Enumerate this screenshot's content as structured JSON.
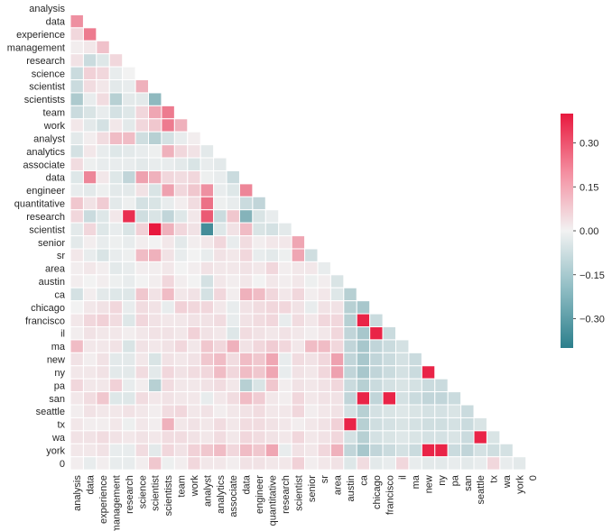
{
  "chart_data": {
    "type": "heatmap",
    "title": "",
    "mask": "upper-triangle",
    "row_labels": [
      "analysis",
      "data",
      "experience",
      "management",
      "research",
      "science",
      "scientist",
      "scientists",
      "team",
      "work",
      "analyst",
      "analytics",
      "associate",
      "data",
      "engineer",
      "quantitative",
      "research",
      "scientist",
      "senior",
      "sr",
      "area",
      "austin",
      "ca",
      "chicago",
      "francisco",
      "il",
      "ma",
      "new",
      "ny",
      "pa",
      "san",
      "seattle",
      "tx",
      "wa",
      "york",
      "0"
    ],
    "col_labels": [
      "analysis",
      "data",
      "experience",
      "management",
      "research",
      "science",
      "scientist",
      "scientists",
      "team",
      "work",
      "analyst",
      "analytics",
      "associate",
      "data",
      "engineer",
      "quantitative",
      "research",
      "scientist",
      "senior",
      "sr",
      "area",
      "austin",
      "ca",
      "chicago",
      "francisco",
      "il",
      "ma",
      "new",
      "ny",
      "pa",
      "san",
      "seattle",
      "tx",
      "wa",
      "york",
      "0"
    ],
    "vmin": -0.4,
    "vmax": 0.4,
    "colormap": [
      "#2c7f8c",
      "#f2f2f2",
      "#e8193e"
    ],
    "colorbar_ticks": [
      0.3,
      0.15,
      0.0,
      -0.15,
      -0.3
    ],
    "colorbar_tick_labels": [
      "0.30",
      "0.15",
      "0.00",
      "−0.15",
      "−0.30"
    ],
    "matrix": [
      [],
      [
        0.18
      ],
      [
        0.05,
        0.22
      ],
      [
        0.01,
        0.02,
        0.09
      ],
      [
        0.03,
        -0.08,
        -0.04,
        0.05
      ],
      [
        -0.08,
        0.06,
        0.05,
        -0.02,
        0.0
      ],
      [
        -0.08,
        0.04,
        0.02,
        -0.03,
        -0.02,
        0.12
      ],
      [
        -0.14,
        -0.02,
        0.04,
        -0.12,
        -0.03,
        -0.03,
        -0.2
      ],
      [
        -0.08,
        -0.05,
        -0.02,
        -0.06,
        -0.04,
        0.05,
        0.14,
        0.22
      ],
      [
        0.02,
        -0.03,
        -0.06,
        0.02,
        -0.03,
        0.05,
        0.08,
        0.22,
        0.12
      ],
      [
        -0.03,
        0.01,
        0.04,
        0.1,
        0.1,
        -0.07,
        -0.12,
        -0.06,
        -0.02,
        0.01
      ],
      [
        -0.06,
        0.02,
        -0.02,
        -0.04,
        -0.03,
        -0.02,
        -0.01,
        0.12,
        0.05,
        0.03,
        -0.03
      ],
      [
        0.04,
        -0.01,
        -0.02,
        -0.02,
        -0.02,
        -0.03,
        -0.02,
        -0.02,
        -0.03,
        -0.05,
        -0.02,
        -0.03
      ],
      [
        -0.04,
        0.2,
        0.02,
        -0.04,
        -0.1,
        0.15,
        0.12,
        0.05,
        0.04,
        0.05,
        -0.01,
        -0.02,
        -0.08
      ],
      [
        -0.02,
        -0.03,
        -0.01,
        -0.03,
        -0.03,
        0.03,
        -0.05,
        0.15,
        0.05,
        0.08,
        0.18,
        -0.02,
        -0.04,
        0.2
      ],
      [
        0.08,
        0.03,
        0.07,
        -0.03,
        -0.01,
        -0.06,
        -0.05,
        -0.02,
        0.01,
        0.04,
        0.24,
        -0.01,
        -0.02,
        -0.08,
        -0.1
      ],
      [
        0.05,
        -0.08,
        -0.04,
        0.02,
        0.36,
        -0.07,
        -0.05,
        -0.1,
        -0.04,
        0.02,
        0.28,
        -0.08,
        0.08,
        -0.22,
        -0.05,
        -0.02
      ],
      [
        -0.03,
        0.05,
        -0.04,
        -0.02,
        -0.05,
        0.06,
        0.4,
        0.12,
        0.05,
        0.03,
        -0.35,
        -0.04,
        0.03,
        0.1,
        -0.05,
        -0.06,
        -0.03
      ],
      [
        -0.03,
        0.01,
        -0.02,
        -0.01,
        -0.02,
        0.01,
        0.0,
        0.02,
        -0.03,
        0.01,
        0.02,
        0.05,
        -0.02,
        0.04,
        0.01,
        0.02,
        0.02,
        0.14
      ],
      [
        0.02,
        -0.02,
        -0.05,
        -0.02,
        -0.01,
        0.1,
        0.12,
        0.03,
        -0.02,
        0.0,
        -0.02,
        0.03,
        0.02,
        0.05,
        -0.02,
        -0.03,
        -0.01,
        0.14,
        -0.07
      ],
      [
        0.01,
        0.02,
        0.01,
        -0.03,
        -0.02,
        0.01,
        0.01,
        0.02,
        0.0,
        0.01,
        0.03,
        0.02,
        0.02,
        0.03,
        0.02,
        0.05,
        0.01,
        0.02,
        0.02,
        -0.02
      ],
      [
        0.01,
        0.0,
        0.01,
        -0.01,
        -0.02,
        0.0,
        0.01,
        0.05,
        0.01,
        0.0,
        -0.06,
        0.02,
        0.01,
        0.02,
        0.0,
        0.02,
        0.01,
        0.02,
        -0.01,
        0.01,
        -0.05
      ],
      [
        -0.06,
        0.01,
        -0.03,
        -0.04,
        -0.04,
        0.08,
        0.03,
        0.1,
        0.02,
        0.03,
        -0.06,
        0.05,
        0.01,
        0.12,
        0.1,
        0.05,
        0.02,
        0.05,
        0.01,
        0.02,
        -0.04,
        -0.12
      ],
      [
        0.0,
        0.02,
        0.03,
        0.05,
        -0.02,
        0.04,
        0.03,
        -0.02,
        0.06,
        0.05,
        0.05,
        0.02,
        -0.02,
        0.03,
        0.04,
        0.05,
        0.05,
        0.03,
        -0.02,
        0.03,
        0.03,
        -0.12,
        -0.15
      ],
      [
        0.02,
        0.05,
        0.06,
        0.04,
        -0.04,
        0.05,
        0.03,
        0.02,
        0.02,
        0.03,
        0.03,
        0.04,
        -0.02,
        0.03,
        0.04,
        0.05,
        -0.02,
        0.04,
        0.02,
        0.05,
        0.05,
        -0.12,
        0.38,
        -0.08
      ],
      [
        0.01,
        0.03,
        0.02,
        0.02,
        0.01,
        0.02,
        0.03,
        0.03,
        0.02,
        0.06,
        0.03,
        0.02,
        -0.04,
        0.04,
        0.03,
        0.02,
        0.03,
        0.02,
        0.01,
        0.02,
        0.05,
        -0.1,
        -0.15,
        0.38,
        -0.08
      ],
      [
        0.1,
        0.02,
        0.02,
        0.03,
        -0.05,
        0.03,
        0.02,
        0.03,
        0.05,
        0.02,
        0.08,
        0.05,
        0.12,
        0.03,
        0.05,
        0.07,
        0.05,
        0.02,
        0.1,
        0.1,
        0.05,
        -0.1,
        -0.15,
        -0.1,
        -0.08,
        -0.06
      ],
      [
        0.03,
        0.01,
        0.03,
        -0.03,
        -0.03,
        0.02,
        -0.05,
        0.03,
        0.02,
        0.03,
        0.08,
        0.1,
        0.04,
        0.1,
        0.08,
        0.14,
        -0.02,
        0.04,
        0.03,
        0.05,
        0.15,
        -0.1,
        -0.15,
        -0.1,
        -0.08,
        -0.06,
        -0.08
      ],
      [
        0.02,
        0.02,
        0.03,
        -0.03,
        -0.03,
        0.04,
        -0.03,
        0.05,
        0.03,
        0.04,
        0.05,
        0.1,
        0.05,
        0.1,
        0.08,
        0.14,
        -0.02,
        0.03,
        0.02,
        0.05,
        0.15,
        -0.1,
        -0.15,
        -0.1,
        -0.08,
        -0.06,
        -0.08,
        0.38
      ],
      [
        0.05,
        0.02,
        0.02,
        0.06,
        -0.02,
        0.01,
        -0.12,
        0.04,
        0.02,
        0.02,
        0.03,
        0.04,
        0.02,
        -0.12,
        -0.05,
        0.08,
        0.01,
        0.03,
        0.02,
        0.03,
        0.05,
        -0.08,
        -0.12,
        -0.08,
        -0.06,
        -0.05,
        -0.06,
        -0.08,
        -0.08
      ],
      [
        0.02,
        0.04,
        0.08,
        -0.04,
        -0.04,
        0.04,
        0.02,
        0.03,
        0.02,
        0.02,
        -0.02,
        0.02,
        0.04,
        0.1,
        0.07,
        0.02,
        0.01,
        0.05,
        0.02,
        0.03,
        0.03,
        -0.1,
        0.38,
        -0.1,
        0.38,
        -0.06,
        -0.08,
        -0.1,
        -0.1,
        -0.08
      ],
      [
        0.01,
        0.03,
        0.02,
        0.02,
        0.03,
        0.02,
        0.01,
        0.04,
        0.05,
        0.02,
        0.03,
        0.01,
        0.02,
        0.03,
        0.04,
        0.02,
        0.02,
        0.05,
        0.01,
        0.02,
        0.03,
        -0.06,
        -0.12,
        -0.06,
        -0.05,
        -0.04,
        -0.05,
        -0.06,
        -0.06,
        -0.05,
        -0.08
      ],
      [
        0.02,
        0.01,
        0.01,
        0.02,
        -0.01,
        0.02,
        0.01,
        0.12,
        0.02,
        0.03,
        0.02,
        0.04,
        0.02,
        0.04,
        0.04,
        0.03,
        0.02,
        0.01,
        0.02,
        0.03,
        0.06,
        0.38,
        -0.12,
        -0.07,
        -0.06,
        -0.05,
        -0.06,
        -0.07,
        -0.07,
        -0.06,
        -0.08,
        -0.05
      ],
      [
        0.03,
        0.03,
        0.04,
        0.03,
        0.02,
        0.03,
        0.02,
        0.04,
        0.04,
        0.03,
        0.02,
        0.04,
        0.02,
        0.05,
        0.04,
        0.03,
        0.02,
        0.05,
        0.02,
        0.03,
        0.05,
        -0.06,
        -0.12,
        -0.06,
        -0.05,
        -0.04,
        -0.05,
        -0.06,
        -0.06,
        -0.05,
        -0.08,
        0.38,
        -0.05
      ],
      [
        0.02,
        0.02,
        0.03,
        -0.02,
        -0.02,
        0.04,
        -0.03,
        0.05,
        0.03,
        0.06,
        0.08,
        0.1,
        0.05,
        0.1,
        0.08,
        0.14,
        -0.02,
        0.03,
        0.02,
        0.05,
        0.12,
        -0.1,
        -0.15,
        -0.1,
        -0.08,
        -0.06,
        -0.08,
        0.38,
        0.38,
        -0.08,
        -0.1,
        -0.06,
        -0.07,
        -0.06
      ],
      [
        0.01,
        -0.02,
        0.01,
        -0.02,
        -0.02,
        0.01,
        0.08,
        -0.01,
        0.01,
        0.05,
        0.02,
        0.02,
        0.01,
        0.03,
        0.03,
        0.02,
        0.02,
        0.06,
        0.01,
        0.02,
        0.03,
        -0.04,
        0.04,
        -0.03,
        -0.02,
        0.05,
        -0.02,
        -0.03,
        -0.03,
        -0.02,
        -0.03,
        -0.02,
        0.05,
        -0.02,
        -0.03
      ]
    ]
  }
}
